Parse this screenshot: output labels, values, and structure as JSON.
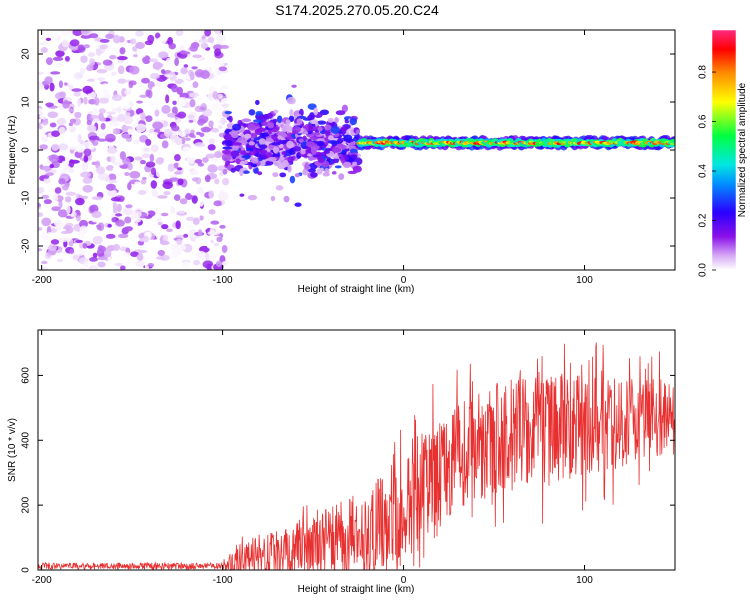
{
  "title": "S174.2025.270.05.20.C24",
  "chart_data": [
    {
      "type": "heatmap",
      "name": "spectrogram",
      "xlabel": "Height of straight line (km)",
      "ylabel": "Frequency (Hz)",
      "xlim": [
        -202,
        150
      ],
      "ylim": [
        -25,
        25
      ],
      "xticks": [
        -200,
        -100,
        0,
        100
      ],
      "yticks": [
        -20,
        -10,
        0,
        10,
        20
      ],
      "colorbar": {
        "label": "Normalized spectral amplitude",
        "range": [
          0,
          0.97
        ],
        "ticks": [
          0.0,
          0.2,
          0.4,
          0.6,
          0.8
        ],
        "colormap": [
          "#ffffff",
          "#c98cf0",
          "#7a00e0",
          "#1a00ff",
          "#00c8ff",
          "#00ff60",
          "#ffff00",
          "#ff8000",
          "#ff0000",
          "#ff2080"
        ]
      },
      "regions": [
        {
          "x_range": [
            -202,
            -98
          ],
          "description_values": {
            "freq_range": [
              -25,
              25
            ],
            "amplitude_range": [
              0.0,
              0.15
            ]
          }
        },
        {
          "x_range": [
            -98,
            -25
          ],
          "description_values": {
            "freq_center": 1.5,
            "freq_halfwidth": 5,
            "amplitude_range": [
              0.05,
              0.3
            ]
          }
        },
        {
          "x_range": [
            -25,
            150
          ],
          "description_values": {
            "freq_center": 1.5,
            "freq_halfwidth": 1.2,
            "amplitude_range": [
              0.4,
              0.95
            ]
          }
        }
      ]
    },
    {
      "type": "line",
      "name": "snr",
      "xlabel": "Height of straight line (km)",
      "ylabel": "SNR (10 * v/v)",
      "xlim": [
        -202,
        150
      ],
      "ylim": [
        0,
        740
      ],
      "xticks": [
        -200,
        -100,
        0,
        100
      ],
      "yticks": [
        0,
        200,
        400,
        600
      ],
      "color": "#e83030",
      "envelope": {
        "x": [
          -202,
          -100,
          -90,
          -80,
          -60,
          -40,
          -20,
          -10,
          0,
          10,
          20,
          30,
          40,
          60,
          80,
          100,
          120,
          140,
          150
        ],
        "y_base": [
          12,
          12,
          20,
          40,
          60,
          90,
          120,
          150,
          180,
          240,
          290,
          340,
          380,
          420,
          430,
          440,
          450,
          470,
          480
        ],
        "y_amp": [
          15,
          15,
          80,
          100,
          120,
          150,
          190,
          230,
          260,
          270,
          260,
          250,
          250,
          250,
          240,
          230,
          200,
          180,
          160
        ]
      },
      "peak_max": 730
    }
  ]
}
